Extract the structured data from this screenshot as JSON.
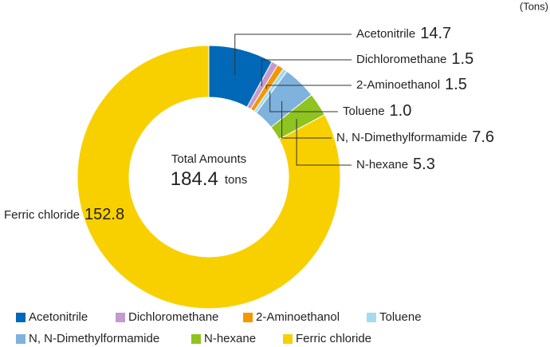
{
  "chart_data": {
    "type": "donut",
    "unit": "(Tons)",
    "center_label": "Total Amounts",
    "total": 184.4,
    "total_unit": "tons",
    "categories": [
      "Acetonitrile",
      "Dichloromethane",
      "2-Aminoethanol",
      "Toluene",
      "N, N-Dimethylformamide",
      "N-hexane",
      "Ferric chloride"
    ],
    "values": [
      14.7,
      1.5,
      1.5,
      1.0,
      7.6,
      5.3,
      152.8
    ],
    "value_labels": [
      "14.7",
      "1.5",
      "1.5",
      "1.0",
      "7.6",
      "5.3",
      "152.8"
    ],
    "colors": [
      "#0068b7",
      "#c39bcf",
      "#f39800",
      "#a3dcef",
      "#7fb2dc",
      "#8fc31f",
      "#f8d000"
    ]
  }
}
